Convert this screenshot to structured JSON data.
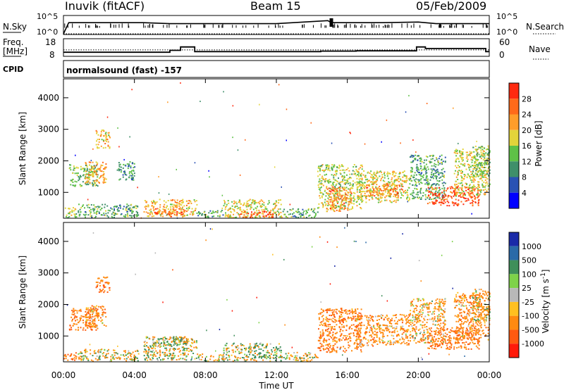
{
  "header": {
    "station": "Inuvik (fitACF)",
    "beam": "Beam 15",
    "date": "05/Feb/2009"
  },
  "aux": {
    "nsky_label": "N.Sky",
    "nsky_ticks": [
      "10^5",
      "10^0"
    ],
    "nsearch_label": "N.Search",
    "nsearch_ticks": [
      "10^5",
      "10^0"
    ],
    "freq_label_1": "Freq.",
    "freq_label_2": "[MHz]",
    "freq_ticks": [
      "18",
      "8"
    ],
    "nave_label": "Nave",
    "nave_ticks": [
      "60",
      "0"
    ],
    "cpid_label": "CPID",
    "cpid_text": "normalsound (fast) -157"
  },
  "axes": {
    "ylabel": "Slant Range [km]",
    "xlabel": "Time UT",
    "yticks": [
      "1000",
      "2000",
      "3000",
      "4000"
    ],
    "xticks": [
      "00:00",
      "04:00",
      "08:00",
      "12:00",
      "16:00",
      "20:00",
      "00:00"
    ]
  },
  "colorbars": {
    "power": {
      "label": "Power [dB]",
      "ticks": [
        "4",
        "8",
        "12",
        "16",
        "20",
        "24",
        "28"
      ],
      "colors": [
        "#0000ff",
        "#2a52b4",
        "#3f8f6a",
        "#5fc147",
        "#e3d43a",
        "#ff9d2a",
        "#ff6a1a",
        "#ff2a10"
      ]
    },
    "velocity": {
      "label": "Velocity [m s",
      "label_exp": "-1",
      "label_end": "]",
      "ticks": [
        "1000",
        "500",
        "100",
        "25",
        "-25",
        "-100",
        "-500",
        "-1000"
      ],
      "colors": [
        "#1a2aa8",
        "#2a6aa8",
        "#3f8f5a",
        "#7ed24a",
        "#b8b8b8",
        "#ffc020",
        "#ff8a10",
        "#ff5a10",
        "#ff1a0a"
      ]
    }
  },
  "chart_data": [
    {
      "type": "line",
      "title": "N.Sky / N.Search",
      "x_range_hours": [
        0,
        24
      ],
      "y_scale": "log",
      "ylim": [
        "10^0",
        "10^5"
      ],
      "series": [
        {
          "name": "N.Sky",
          "x": [
            0,
            0.3,
            0.5,
            3.9,
            4.5,
            6,
            8,
            10,
            12,
            14.9,
            15.1,
            16,
            18,
            20,
            21,
            22,
            24
          ],
          "y": [
            1,
            2000,
            2000,
            2000,
            2000,
            1000,
            1000,
            1000,
            1000,
            8000,
            2000,
            2000,
            2000,
            3000,
            1000,
            1000,
            1000
          ]
        },
        {
          "name": "N.Search",
          "x": [
            0,
            12,
            24
          ],
          "y": [
            1,
            1,
            1
          ]
        }
      ]
    },
    {
      "type": "line",
      "title": "Freq. / Nave",
      "x_range_hours": [
        0,
        24
      ],
      "series": [
        {
          "name": "Freq.",
          "unit": "MHz",
          "x": [
            0,
            5.6,
            6.0,
            6.6,
            7.4,
            12.0,
            14.5,
            16.5,
            19.9,
            20.4,
            20.8,
            23.8,
            24
          ],
          "y": [
            10.2,
            10.2,
            11.4,
            13.6,
            10.6,
            10.6,
            10.9,
            11.1,
            13.6,
            12.6,
            12.6,
            10.6,
            10.6
          ]
        },
        {
          "name": "Nave",
          "ylim": [
            0,
            60
          ],
          "x": [
            0,
            24
          ],
          "y": [
            22,
            22
          ]
        }
      ]
    },
    {
      "type": "heatmap",
      "title": "Power [dB]",
      "xlabel": "Time UT",
      "ylabel": "Slant Range [km]",
      "x_range_hours": [
        0,
        24
      ],
      "ylim_km": [
        180,
        4600
      ],
      "value_range": [
        0,
        30
      ],
      "clusters": [
        {
          "t0": 0.0,
          "t1": 0.7,
          "r0": 220,
          "r1": 550,
          "v": 16
        },
        {
          "t0": 0.3,
          "t1": 1.9,
          "r0": 1200,
          "r1": 1900,
          "v": 14
        },
        {
          "t0": 1.2,
          "t1": 2.4,
          "r0": 1300,
          "r1": 2000,
          "v": 22
        },
        {
          "t0": 1.8,
          "t1": 2.6,
          "r0": 2400,
          "r1": 3000,
          "v": 20
        },
        {
          "t0": 0.8,
          "t1": 4.2,
          "r0": 220,
          "r1": 650,
          "v": 12
        },
        {
          "t0": 3.0,
          "t1": 4.0,
          "r0": 1400,
          "r1": 2000,
          "v": 10
        },
        {
          "t0": 4.5,
          "t1": 7.5,
          "r0": 250,
          "r1": 800,
          "v": 20
        },
        {
          "t0": 5.0,
          "t1": 6.8,
          "r0": 250,
          "r1": 500,
          "v": 26
        },
        {
          "t0": 7.5,
          "t1": 9.0,
          "r0": 220,
          "r1": 450,
          "v": 12
        },
        {
          "t0": 9.0,
          "t1": 12.3,
          "r0": 220,
          "r1": 800,
          "v": 18
        },
        {
          "t0": 9.8,
          "t1": 11.8,
          "r0": 220,
          "r1": 420,
          "v": 28
        },
        {
          "t0": 12.3,
          "t1": 14.3,
          "r0": 220,
          "r1": 500,
          "v": 12
        },
        {
          "t0": 14.3,
          "t1": 16.8,
          "r0": 500,
          "r1": 1900,
          "v": 16
        },
        {
          "t0": 14.8,
          "t1": 16.2,
          "r0": 400,
          "r1": 1200,
          "v": 24
        },
        {
          "t0": 16.5,
          "t1": 19.5,
          "r0": 700,
          "r1": 1700,
          "v": 18
        },
        {
          "t0": 17.0,
          "t1": 19.2,
          "r0": 900,
          "r1": 1300,
          "v": 24
        },
        {
          "t0": 19.5,
          "t1": 21.5,
          "r0": 800,
          "r1": 2200,
          "v": 12
        },
        {
          "t0": 20.5,
          "t1": 23.4,
          "r0": 600,
          "r1": 1200,
          "v": 28
        },
        {
          "t0": 22.0,
          "t1": 24.0,
          "r0": 900,
          "r1": 2400,
          "v": 18
        },
        {
          "t0": 23.0,
          "t1": 24.0,
          "r0": 1500,
          "r1": 2500,
          "v": 14
        }
      ]
    },
    {
      "type": "heatmap",
      "title": "Velocity [m s-1]",
      "xlabel": "Time UT",
      "ylabel": "Slant Range [km]",
      "x_range_hours": [
        0,
        24
      ],
      "ylim_km": [
        180,
        4600
      ],
      "value_range": [
        -1000,
        1000
      ],
      "clusters": [
        {
          "t0": 0.0,
          "t1": 0.7,
          "r0": 220,
          "r1": 500,
          "v": -500
        },
        {
          "t0": 0.3,
          "t1": 1.9,
          "r0": 1200,
          "r1": 1900,
          "v": -500
        },
        {
          "t0": 1.2,
          "t1": 2.4,
          "r0": 1300,
          "r1": 2000,
          "v": -300
        },
        {
          "t0": 1.8,
          "t1": 2.6,
          "r0": 2400,
          "r1": 2900,
          "v": -500
        },
        {
          "t0": 0.8,
          "t1": 4.2,
          "r0": 220,
          "r1": 600,
          "v": -100
        },
        {
          "t0": 4.5,
          "t1": 7.5,
          "r0": 250,
          "r1": 1000,
          "v": 50
        },
        {
          "t0": 5.0,
          "t1": 7.0,
          "r0": 700,
          "r1": 1000,
          "v": 0
        },
        {
          "t0": 7.5,
          "t1": 9.0,
          "r0": 220,
          "r1": 450,
          "v": -100
        },
        {
          "t0": 9.0,
          "t1": 12.3,
          "r0": 220,
          "r1": 800,
          "v": 80
        },
        {
          "t0": 12.3,
          "t1": 14.3,
          "r0": 220,
          "r1": 500,
          "v": -60
        },
        {
          "t0": 14.3,
          "t1": 16.8,
          "r0": 500,
          "r1": 1900,
          "v": -400
        },
        {
          "t0": 16.5,
          "t1": 19.5,
          "r0": 700,
          "r1": 1700,
          "v": -300
        },
        {
          "t0": 19.5,
          "t1": 21.5,
          "r0": 800,
          "r1": 2200,
          "v": -200
        },
        {
          "t0": 20.5,
          "t1": 23.4,
          "r0": 600,
          "r1": 1300,
          "v": -500
        },
        {
          "t0": 22.0,
          "t1": 24.0,
          "r0": 900,
          "r1": 2400,
          "v": -300
        },
        {
          "t0": 23.0,
          "t1": 24.0,
          "r0": 1500,
          "r1": 2500,
          "v": -100
        }
      ]
    }
  ]
}
